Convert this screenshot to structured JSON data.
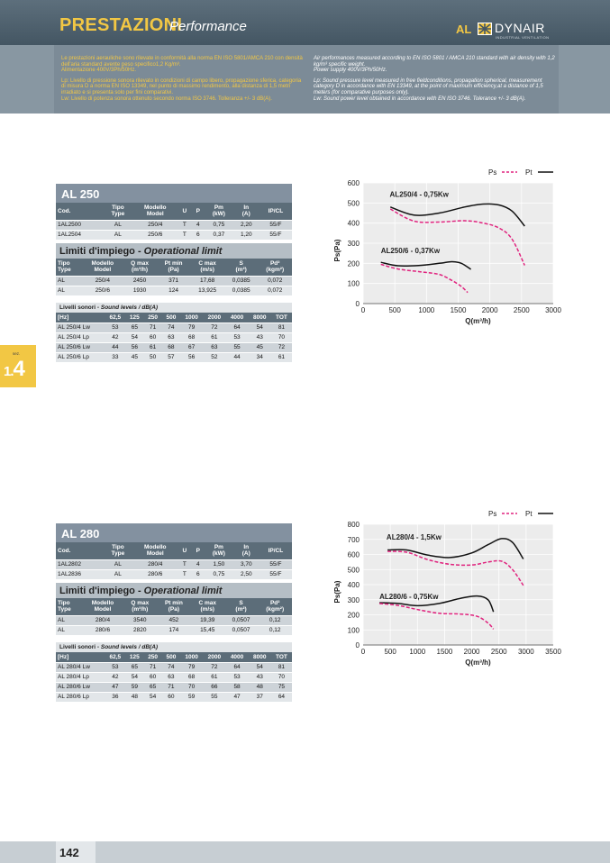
{
  "header": {
    "title": "PRESTAZIONI",
    "subtitle": "Performance",
    "code": "AL",
    "brand": "DYNAIR",
    "brand_tag": "INDUSTRIAL VENTILATION"
  },
  "notes": {
    "it": [
      "Le prestazioni aerauliche sono rilevate in conformità alla norma EN ISO 5801/AMCA 210 con densità dell'aria standard avente peso specifico1,2 Kg/m³.",
      "Alimentazione 400V/3Ph/50Hz.",
      "Lp: Livello di pressione sonora rilevato in condizioni di campo libero, propagazione sferica, categoria di misura D a norma EN ISO 13349, nel punto di massimo rendimento, alla distanza di 1,5 metri irradiato e si presenta solo per fini comparativi.",
      "Lw: Livello di potenza sonora ottenuto secondo norma ISO 3746. Tolleranza +/- 3 dB(A)."
    ],
    "en": [
      "Air performances measured according to EN ISO 5801 / AMCA 210 standard with air density with 1,2 kg/m³ specific weight.",
      "Power supply 400V/3Ph/50Hz.",
      "Lp: Sound pressure level measured in free fieldconditions, propagation spherical, measurement category D in accordance with EN 13349, at the point of maximum efficiency,at a distance of 1,5 meters (for comparative purposes only).",
      "Lw: Sound power level obtained in accordance with EN ISO 3746. Tolerance +/- 3 dB(A)."
    ]
  },
  "side_tab": {
    "sez": "sez.",
    "num_a": "1.",
    "num_b": "4"
  },
  "table_labels": {
    "main_headers": [
      "Cod.",
      "Tipo\nType",
      "Modello\nModel",
      "U",
      "P",
      "Pm\n(kW)",
      "In\n(A)",
      "IP/CL"
    ],
    "limits_title_it": "Limiti d'impiego - ",
    "limits_title_en": "Operational limit",
    "limits_headers": [
      "Tipo\nType",
      "Modello\nModel",
      "Q max\n(m³/h)",
      "Pt min\n(Pa)",
      "C max\n(m/s)",
      "S\n(m²)",
      "Pd²\n(kgm²)"
    ],
    "sound_title_it": "Livelli sonori - ",
    "sound_title_en": "Sound levels / dB(A)",
    "sound_headers": [
      "[Hz]",
      "62,5",
      "125",
      "250",
      "500",
      "1000",
      "2000",
      "4000",
      "8000",
      "TOT"
    ]
  },
  "models": [
    {
      "name": "AL 250",
      "rows": [
        [
          "1AL2500",
          "AL",
          "250/4",
          "T",
          "4",
          "0,75",
          "2,20",
          "55/F"
        ],
        [
          "1AL2504",
          "AL",
          "250/6",
          "T",
          "6",
          "0,37",
          "1,20",
          "55/F"
        ]
      ],
      "limits": [
        [
          "AL",
          "250/4",
          "2450",
          "371",
          "17,68",
          "0,0385",
          "0,072"
        ],
        [
          "AL",
          "250/6",
          "1930",
          "124",
          "13,925",
          "0,0385",
          "0,072"
        ]
      ],
      "sound": [
        [
          "AL 250/4 Lw",
          "53",
          "65",
          "71",
          "74",
          "79",
          "72",
          "64",
          "54",
          "81"
        ],
        [
          "AL 250/4 Lp",
          "42",
          "54",
          "60",
          "63",
          "68",
          "61",
          "53",
          "43",
          "70"
        ],
        [
          "AL 250/6 Lw",
          "44",
          "56",
          "61",
          "68",
          "67",
          "63",
          "55",
          "45",
          "72"
        ],
        [
          "AL 250/6 Lp",
          "33",
          "45",
          "50",
          "57",
          "56",
          "52",
          "44",
          "34",
          "61"
        ]
      ]
    },
    {
      "name": "AL 280",
      "rows": [
        [
          "1AL2802",
          "AL",
          "280/4",
          "T",
          "4",
          "1,50",
          "3,70",
          "55/F"
        ],
        [
          "1AL2836",
          "AL",
          "280/6",
          "T",
          "6",
          "0,75",
          "2,50",
          "55/F"
        ]
      ],
      "limits": [
        [
          "AL",
          "280/4",
          "3540",
          "452",
          "19,39",
          "0,0507",
          "0,12"
        ],
        [
          "AL",
          "280/6",
          "2820",
          "174",
          "15,45",
          "0,0507",
          "0,12"
        ]
      ],
      "sound": [
        [
          "AL 280/4 Lw",
          "53",
          "65",
          "71",
          "74",
          "79",
          "72",
          "64",
          "54",
          "81"
        ],
        [
          "AL 280/4 Lp",
          "42",
          "54",
          "60",
          "63",
          "68",
          "61",
          "53",
          "43",
          "70"
        ],
        [
          "AL 280/6 Lw",
          "47",
          "59",
          "65",
          "71",
          "70",
          "66",
          "58",
          "48",
          "75"
        ],
        [
          "AL 280/6 Lp",
          "36",
          "48",
          "54",
          "60",
          "59",
          "55",
          "47",
          "37",
          "64"
        ]
      ]
    }
  ],
  "chart_data": [
    {
      "type": "line",
      "xlabel": "Q(m³/h)",
      "ylabel": "Ps(Pa)",
      "xlim": [
        0,
        3000
      ],
      "ylim": [
        0,
        600
      ],
      "xticks": [
        "0",
        "500",
        "1000",
        "1500",
        "2000",
        "2500",
        "3000"
      ],
      "yticks": [
        "0",
        "100",
        "200",
        "300",
        "400",
        "500",
        "600"
      ],
      "legend": {
        "ps": "Ps",
        "pt": "Pt",
        "position": "top-right"
      },
      "grid": true,
      "curve_labels": [
        {
          "text": "AL250/4 - 0,75Kw",
          "at": [
            420,
            530
          ]
        },
        {
          "text": "AL250/6 - 0,37Kw",
          "at": [
            280,
            250
          ]
        }
      ],
      "series": [
        {
          "kind": "pt",
          "points": [
            [
              430,
              480
            ],
            [
              800,
              440
            ],
            [
              1200,
              450
            ],
            [
              1600,
              480
            ],
            [
              1900,
              495
            ],
            [
              2150,
              490
            ],
            [
              2350,
              460
            ],
            [
              2550,
              385
            ]
          ]
        },
        {
          "kind": "ps",
          "points": [
            [
              430,
              470
            ],
            [
              800,
              410
            ],
            [
              1200,
              405
            ],
            [
              1600,
              412
            ],
            [
              1900,
              400
            ],
            [
              2150,
              375
            ],
            [
              2350,
              320
            ],
            [
              2550,
              190
            ]
          ]
        },
        {
          "kind": "pt",
          "points": [
            [
              280,
              205
            ],
            [
              550,
              188
            ],
            [
              900,
              190
            ],
            [
              1200,
              200
            ],
            [
              1400,
              208
            ],
            [
              1550,
              200
            ],
            [
              1700,
              170
            ]
          ]
        },
        {
          "kind": "ps",
          "points": [
            [
              280,
              195
            ],
            [
              550,
              172
            ],
            [
              900,
              158
            ],
            [
              1200,
              145
            ],
            [
              1400,
              115
            ],
            [
              1550,
              85
            ],
            [
              1650,
              55
            ]
          ]
        }
      ]
    },
    {
      "type": "line",
      "xlabel": "Q(m³/h)",
      "ylabel": "Ps(Pa)",
      "xlim": [
        0,
        3500
      ],
      "ylim": [
        0,
        800
      ],
      "xticks": [
        "0",
        "500",
        "1000",
        "1500",
        "2000",
        "2500",
        "3000",
        "3500"
      ],
      "yticks": [
        "0",
        "100",
        "200",
        "300",
        "400",
        "500",
        "600",
        "700",
        "800"
      ],
      "legend": {
        "ps": "Ps",
        "pt": "Pt",
        "position": "top-right"
      },
      "grid": true,
      "curve_labels": [
        {
          "text": "AL280/4 - 1,5Kw",
          "at": [
            430,
            700
          ]
        },
        {
          "text": "AL280/6 - 0,75Kw",
          "at": [
            300,
            305
          ]
        }
      ],
      "series": [
        {
          "kind": "pt",
          "points": [
            [
              450,
              630
            ],
            [
              800,
              630
            ],
            [
              1200,
              595
            ],
            [
              1600,
              580
            ],
            [
              2000,
              610
            ],
            [
              2300,
              665
            ],
            [
              2550,
              705
            ],
            [
              2750,
              680
            ],
            [
              2950,
              570
            ]
          ]
        },
        {
          "kind": "ps",
          "points": [
            [
              450,
              620
            ],
            [
              800,
              615
            ],
            [
              1200,
              565
            ],
            [
              1600,
              535
            ],
            [
              2000,
              530
            ],
            [
              2300,
              550
            ],
            [
              2550,
              555
            ],
            [
              2750,
              500
            ],
            [
              2950,
              395
            ]
          ]
        },
        {
          "kind": "pt",
          "points": [
            [
              300,
              280
            ],
            [
              650,
              275
            ],
            [
              1000,
              260
            ],
            [
              1400,
              275
            ],
            [
              1800,
              310
            ],
            [
              2100,
              325
            ],
            [
              2300,
              300
            ],
            [
              2400,
              220
            ]
          ]
        },
        {
          "kind": "ps",
          "points": [
            [
              300,
              275
            ],
            [
              650,
              262
            ],
            [
              1000,
              235
            ],
            [
              1400,
              210
            ],
            [
              1800,
              205
            ],
            [
              2100,
              190
            ],
            [
              2300,
              145
            ],
            [
              2400,
              105
            ]
          ]
        }
      ]
    }
  ],
  "footer": {
    "page": "142"
  },
  "colors": {
    "accent": "#f2c744",
    "header": "#4f616e",
    "pt_line": "#111111",
    "ps_line": "#e0237e"
  }
}
